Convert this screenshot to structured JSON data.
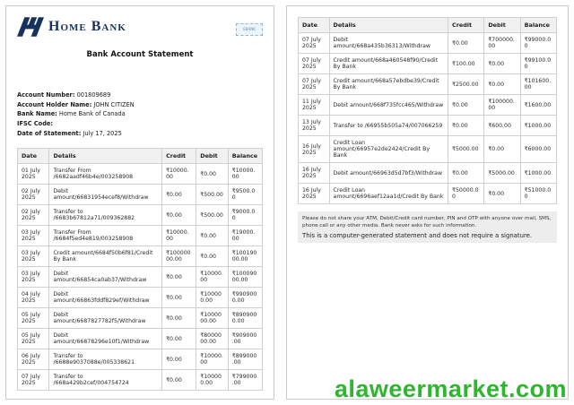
{
  "watermark": {
    "text": "alaweermarket.com",
    "color": "#2fb52f"
  },
  "page1": {
    "logo_text": "Home Bank",
    "badge_text": "EBANK",
    "title": "Bank Account Statement",
    "account_info": [
      {
        "label": "Account Number:",
        "value": "001809689"
      },
      {
        "label": "Account Holder Name:",
        "value": "JOHN CITIZEN"
      },
      {
        "label": "Bank Name:",
        "value": "Home Bank of Canada"
      },
      {
        "label": "IFSC Code:",
        "value": ""
      },
      {
        "label": "Date of Statement:",
        "value": "July 17, 2025"
      }
    ],
    "table": {
      "headers": [
        "Date",
        "Details",
        "Credit",
        "Debit",
        "Balance"
      ],
      "rows": [
        [
          "01 July 2025",
          "Transfer From /6682aadf46b4e/003258908",
          "₹10000.00",
          "₹0.00",
          "₹10000.00"
        ],
        [
          "02 July 2025",
          "Debit amount/66831954ecef8/Withdraw",
          "₹0.00",
          "₹500.00",
          "₹9500.00"
        ],
        [
          "02 July 2025",
          "Transfer to /6683b67812a71/009362882",
          "₹0.00",
          "₹500.00",
          "₹9000.00"
        ],
        [
          "03 July 2025",
          "Transfer From /6684f5ed4e819/003258908",
          "₹10000.00",
          "₹0.00",
          "₹19000.00"
        ],
        [
          "03 July 2025",
          "Credit amount/6684f50b6f81/Credit By Bank",
          "₹10000000.00",
          "₹0.00",
          "₹10019000.00"
        ],
        [
          "03 July 2025",
          "Debit amount/66854ca0ab37/Withdraw",
          "₹0.00",
          "₹10000.00",
          "₹10009000.00"
        ],
        [
          "04 July 2025",
          "Debit amount/66863fddf829ef/Withdraw",
          "₹0.00",
          "₹100000.00",
          "₹9909000.00"
        ],
        [
          "05 July 2025",
          "Debit amount/6687827782f5/Withdraw",
          "₹0.00",
          "₹1000000.00",
          "₹8909000.00"
        ],
        [
          "05 July 2025",
          "Debit amount/66878296e10f1/Withdraw",
          "₹0.00",
          "₹8000000.00",
          "₹909000.00"
        ],
        [
          "06 July 2025",
          "Transfer to /6688e9037088e/005338621",
          "₹0.00",
          "₹10000.00",
          "₹899000.00"
        ],
        [
          "07 July 2025",
          "Transfer to /668a429b2cef/004754724",
          "₹0.00",
          "₹100000.00",
          "₹799000.00"
        ]
      ]
    }
  },
  "page2": {
    "table": {
      "headers": [
        "Date",
        "Details",
        "Credit",
        "Debit",
        "Balance"
      ],
      "rows": [
        [
          "07 July 2025",
          "Debit amount/668a435b36313/Withdraw",
          "₹0.00",
          "₹700000.00",
          "₹99000.00"
        ],
        [
          "07 July 2025",
          "Credit amount/668a460548f90/Credit By Bank",
          "₹100.00",
          "₹0.00",
          "₹99100.00"
        ],
        [
          "07 July 2025",
          "Credit amount/668a57ebdbe39/Credit By Bank",
          "₹2500.00",
          "₹0.00",
          "₹101600.00"
        ],
        [
          "11 July 2025",
          "Debit amount/668f735fcc465/Withdraw",
          "₹0.00",
          "₹100000.00",
          "₹1600.00"
        ],
        [
          "13 July 2025",
          "Transfer to /66955b505a74/007066259",
          "₹0.00",
          "₹600.00",
          "₹1000.00"
        ],
        [
          "16 July 2025",
          "Credit Loan amount/66957e2de2424/Credit By Bank",
          "₹5000.00",
          "₹0.00",
          "₹6000.00"
        ],
        [
          "16 July 2025",
          "Debit amount/66963d5d7bf3/Withdraw",
          "₹0.00",
          "₹5000.00",
          "₹1000.00"
        ],
        [
          "16 July 2025",
          "Credit Loan amount/6696aef12aa1d/Credit By Bank",
          "₹50000.00",
          "₹0.00",
          "₹51000.00"
        ]
      ]
    },
    "footer": {
      "notice1": "Please do not share your ATM, Debit/Credit card number, PIN and OTP with anyone over mail, SMS, phone call or any other media. Bank never asks for such information.",
      "notice2": "This is a computer-generated statement and does not require a signature."
    }
  }
}
